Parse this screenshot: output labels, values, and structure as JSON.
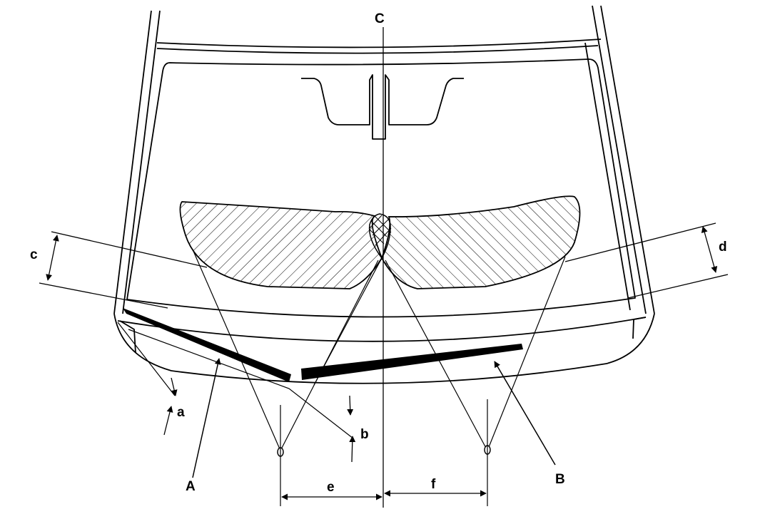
{
  "labels": {
    "A": "A",
    "B": "B",
    "C": "C",
    "a": "a",
    "b": "b",
    "c": "c",
    "d": "d",
    "e": "e",
    "f": "f"
  },
  "colors": {
    "line": "#000000",
    "background": "#ffffff"
  }
}
